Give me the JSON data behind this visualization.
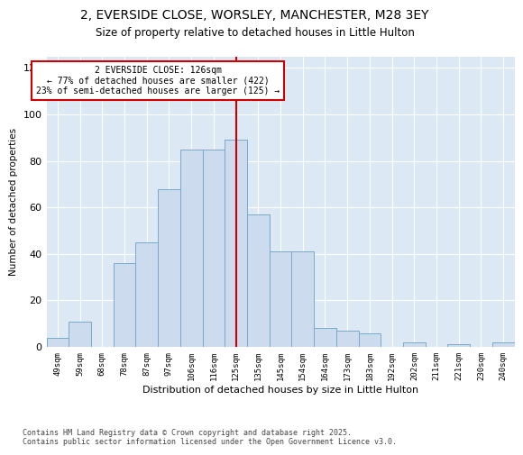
{
  "title1": "2, EVERSIDE CLOSE, WORSLEY, MANCHESTER, M28 3EY",
  "title2": "Size of property relative to detached houses in Little Hulton",
  "xlabel": "Distribution of detached houses by size in Little Hulton",
  "ylabel": "Number of detached properties",
  "bins": [
    "49sqm",
    "59sqm",
    "68sqm",
    "78sqm",
    "87sqm",
    "97sqm",
    "106sqm",
    "116sqm",
    "125sqm",
    "135sqm",
    "145sqm",
    "154sqm",
    "164sqm",
    "173sqm",
    "183sqm",
    "192sqm",
    "202sqm",
    "211sqm",
    "221sqm",
    "230sqm",
    "240sqm"
  ],
  "bar_values": [
    4,
    11,
    0,
    36,
    45,
    68,
    85,
    85,
    89,
    57,
    41,
    41,
    8,
    7,
    6,
    0,
    2,
    0,
    1,
    0,
    2
  ],
  "bar_color": "#ccdcee",
  "bar_edge_color": "#7aaac8",
  "vline_index": 8,
  "vline_color": "#cc0000",
  "annotation_title": "2 EVERSIDE CLOSE: 126sqm",
  "annotation_line1": "← 77% of detached houses are smaller (422)",
  "annotation_line2": "23% of semi-detached houses are larger (125) →",
  "ylim": [
    0,
    125
  ],
  "yticks": [
    0,
    20,
    40,
    60,
    80,
    100,
    120
  ],
  "bg_color": "#dce8f4",
  "footer1": "Contains HM Land Registry data © Crown copyright and database right 2025.",
  "footer2": "Contains public sector information licensed under the Open Government Licence v3.0."
}
